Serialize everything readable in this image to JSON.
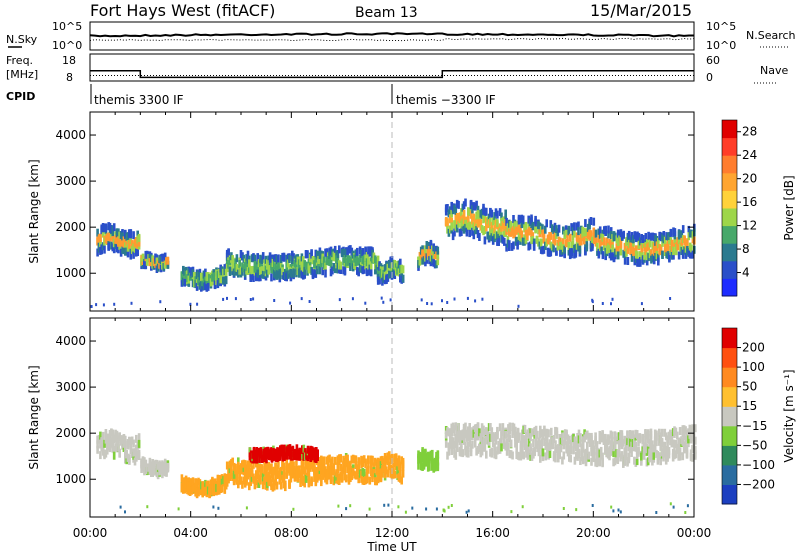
{
  "header": {
    "station": "Fort Hays West (fitACF)",
    "beam": "Beam 13",
    "date": "15/Mar/2015"
  },
  "noise_panel": {
    "left_label": "N.Sky",
    "right_label": "N.Search",
    "left_ticks": [
      "10^5",
      "10^0"
    ],
    "right_ticks": [
      "10^5",
      "10^0"
    ]
  },
  "freq_panel": {
    "left_label_1": "Freq.",
    "left_label_2": "[MHz]",
    "right_label": "Nave",
    "left_ticks": [
      "18",
      "8"
    ],
    "right_ticks": [
      "60",
      "0"
    ],
    "segments": [
      {
        "t0": 0,
        "t1": 2.0,
        "freq": 11.5
      },
      {
        "t0": 2.0,
        "t1": 14.0,
        "freq": 8.3
      },
      {
        "t0": 14.0,
        "t1": 24,
        "freq": 11.5
      }
    ],
    "nave_level": 7
  },
  "cpid": {
    "label": "CPID",
    "programs": [
      {
        "t": 0.0,
        "text": "themis 3300 IF"
      },
      {
        "t": 12.0,
        "text": "themis −3300 IF"
      }
    ]
  },
  "x_axis": {
    "label": "Time UT",
    "range": [
      0,
      24
    ],
    "ticks": [
      0,
      4,
      8,
      12,
      16,
      20,
      24
    ],
    "tick_labels": [
      "00:00",
      "04:00",
      "08:00",
      "12:00",
      "16:00",
      "20:00",
      "00:00"
    ]
  },
  "chart_data": [
    {
      "type": "heatmap",
      "title": "Power",
      "ylabel": "Slant Range [km]",
      "ylim": [
        180,
        4500
      ],
      "y_ticks": [
        1000,
        2000,
        3000,
        4000
      ],
      "colorbar": {
        "label": "Power [dB]",
        "tick_labels": [
          "4",
          "8",
          "12",
          "16",
          "20",
          "24",
          "28"
        ],
        "colors": [
          "#1e2cff",
          "#2a4fc9",
          "#2b7a8f",
          "#47a86a",
          "#9ed64a",
          "#ffd23a",
          "#ffa530",
          "#ff7d2e",
          "#ff3d28",
          "#e00000"
        ]
      },
      "bands": [
        {
          "t0": 0.25,
          "t1": 1.95,
          "center": 1700,
          "width": 500,
          "core": "#ff9a30"
        },
        {
          "t0": 2.0,
          "t1": 3.1,
          "center": 1250,
          "width": 260,
          "core": "#ff9a30"
        },
        {
          "t0": 3.6,
          "t1": 5.4,
          "center": 900,
          "width": 350,
          "core": "#47a86a"
        },
        {
          "t0": 5.4,
          "t1": 11.4,
          "center": 1200,
          "width": 500,
          "core": "#47a86a"
        },
        {
          "t0": 11.4,
          "t1": 12.4,
          "center": 1050,
          "width": 380,
          "core": "#47a86a"
        },
        {
          "t0": 13.0,
          "t1": 13.8,
          "center": 1400,
          "width": 420,
          "core": "#ff9a30"
        },
        {
          "t0": 14.1,
          "t1": 16.5,
          "center": 2100,
          "width": 700,
          "core": "#ffa530"
        },
        {
          "t0": 16.5,
          "t1": 20.0,
          "center": 1800,
          "width": 650,
          "core": "#ff9a30"
        },
        {
          "t0": 20.0,
          "t1": 24.0,
          "center": 1600,
          "width": 600,
          "core": "#ff9a30"
        }
      ]
    },
    {
      "type": "heatmap",
      "title": "Velocity",
      "ylabel": "Slant Range [km]",
      "ylim": [
        180,
        4500
      ],
      "y_ticks": [
        1000,
        2000,
        3000,
        4000
      ],
      "colorbar": {
        "label": "Velocity [m s⁻¹]",
        "tick_labels": [
          "200",
          "100",
          "50",
          "15",
          "−15",
          "−50",
          "−100",
          "−200"
        ],
        "colors": [
          "#1c3fc0",
          "#2a6ca0",
          "#2f8a5c",
          "#7fcf3a",
          "#c8c8c0",
          "#ffc030",
          "#ff8a20",
          "#ff5010",
          "#e00000"
        ]
      },
      "bands": [
        {
          "t0": 0.25,
          "t1": 1.95,
          "center": 1700,
          "width": 500,
          "color": "#c8c8c0"
        },
        {
          "t0": 2.0,
          "t1": 3.1,
          "center": 1250,
          "width": 260,
          "color": "#c8c8c0"
        },
        {
          "t0": 3.6,
          "t1": 5.4,
          "center": 850,
          "width": 300,
          "color": "#ffa520"
        },
        {
          "t0": 5.4,
          "t1": 11.4,
          "center": 1150,
          "width": 520,
          "color": "#ffa520"
        },
        {
          "t0": 6.3,
          "t1": 9.0,
          "center": 1550,
          "width": 200,
          "color": "#e00000"
        },
        {
          "t0": 11.4,
          "t1": 12.4,
          "center": 1250,
          "width": 450,
          "color": "#ffa520"
        },
        {
          "t0": 13.0,
          "t1": 13.8,
          "center": 1400,
          "width": 420,
          "color": "#7fcf3a"
        },
        {
          "t0": 14.1,
          "t1": 24.0,
          "center": 1750,
          "width": 650,
          "color": "#c8c8c0"
        }
      ]
    }
  ]
}
